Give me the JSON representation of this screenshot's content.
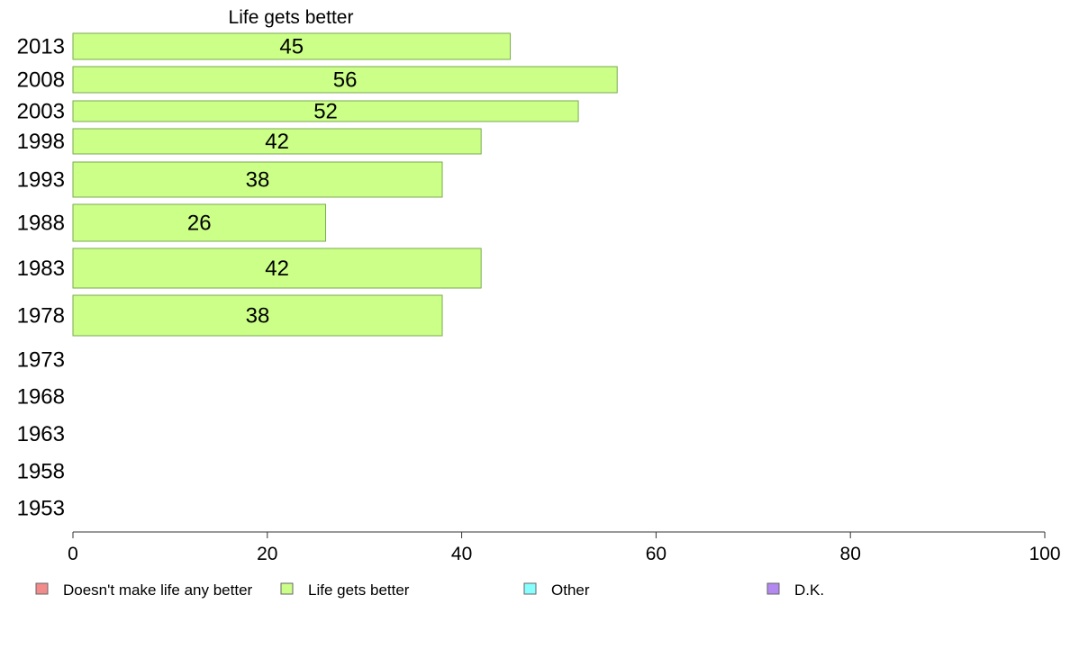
{
  "chart_data": {
    "type": "bar",
    "orientation": "horizontal",
    "title": "Life gets better",
    "categories": [
      "2013",
      "2008",
      "2003",
      "1998",
      "1993",
      "1988",
      "1983",
      "1978",
      "1973",
      "1968",
      "1963",
      "1958",
      "1953"
    ],
    "series": [
      {
        "name": "Life gets better",
        "values": [
          45,
          56,
          52,
          42,
          38,
          26,
          42,
          38,
          null,
          null,
          null,
          null,
          null
        ]
      }
    ],
    "xlim": [
      0,
      100
    ],
    "xticks": [
      "0",
      "20",
      "40",
      "60",
      "80",
      "100"
    ],
    "grid": false,
    "legend_position": "bottom",
    "legend": [
      {
        "label": "Doesn't make life any better",
        "color": "#f28b8b"
      },
      {
        "label": "Life gets better",
        "color": "#ccff88"
      },
      {
        "label": "Other",
        "color": "#88ffff"
      },
      {
        "label": "D.K.",
        "color": "#b388f0"
      }
    ],
    "bar_color": "#ccff88",
    "bar_stroke": "#7aaa50"
  }
}
